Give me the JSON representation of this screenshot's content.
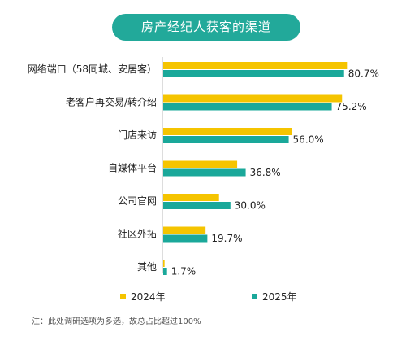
{
  "title": "房产经纪人获客的渠道",
  "footnote": "注：此处调研选项为多选，故总占比超过100%",
  "colors": {
    "accent": "#22a99a",
    "series2024": "#f5c400",
    "series2025": "#1aa89a"
  },
  "chart_data": {
    "type": "bar",
    "orientation": "horizontal",
    "title": "房产经纪人获客的渠道",
    "categories": [
      "网络端口（58同城、安居客）",
      "老客户再交易/转介绍",
      "门店来访",
      "自媒体平台",
      "公司官网",
      "社区外拓",
      "其他"
    ],
    "series": [
      {
        "name": "2024年",
        "values": [
          82.0,
          79.8,
          57.4,
          33.0,
          24.9,
          18.9,
          0.6
        ],
        "labels": []
      },
      {
        "name": "2025年",
        "values": [
          80.7,
          75.2,
          56.0,
          36.8,
          30.0,
          19.7,
          1.7
        ],
        "labels": [
          "80.7%",
          "75.2%",
          "56.0%",
          "36.8%",
          "30.0%",
          "19.7%",
          "1.7%"
        ]
      }
    ],
    "xlim": [
      0,
      100
    ],
    "grid": false,
    "legend": "bottom"
  }
}
